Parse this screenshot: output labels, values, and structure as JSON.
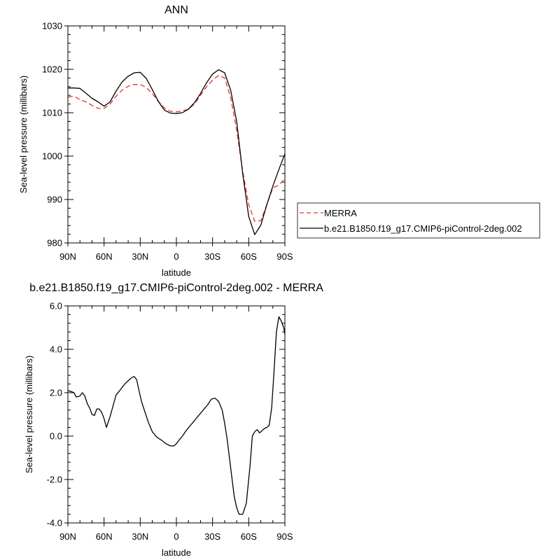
{
  "colors": {
    "model": "#000000",
    "obs": "#e83030",
    "axis": "#000000"
  },
  "chart_data": [
    {
      "type": "line",
      "title": "ANN",
      "xlabel": "latitude",
      "ylabel": "Sea-level pressure (millibars)",
      "xlim": [
        90,
        -90
      ],
      "ylim": [
        980,
        1030
      ],
      "xticks": [
        90,
        60,
        30,
        0,
        -30,
        -60,
        -90
      ],
      "xtick_labels": [
        "90N",
        "60N",
        "30N",
        "0",
        "30S",
        "60S",
        "90S"
      ],
      "yticks": [
        980,
        990,
        1000,
        1010,
        1020,
        1030
      ],
      "ytick_labels": [
        "980",
        "990",
        "1000",
        "1010",
        "1020",
        "1030"
      ],
      "legend_position": "right",
      "series": [
        {
          "name": "MERRA",
          "style": "dashed",
          "color": "#e83030",
          "x": [
            90,
            85,
            80,
            75,
            70,
            65,
            60,
            55,
            50,
            45,
            40,
            35,
            30,
            25,
            20,
            15,
            10,
            5,
            0,
            -5,
            -10,
            -15,
            -20,
            -25,
            -30,
            -35,
            -40,
            -45,
            -50,
            -55,
            -60,
            -65,
            -70,
            -75,
            -80,
            -85,
            -90
          ],
          "y": [
            1013.6,
            1013.8,
            1013.0,
            1012.5,
            1011.7,
            1011.0,
            1011.0,
            1012.0,
            1013.8,
            1015.2,
            1016.1,
            1016.5,
            1016.5,
            1015.8,
            1014.4,
            1012.6,
            1011.1,
            1010.3,
            1010.2,
            1010.4,
            1010.8,
            1012.0,
            1014.0,
            1016.0,
            1017.5,
            1018.6,
            1018.0,
            1013.5,
            1006.0,
            996.5,
            988.8,
            985.0,
            985.1,
            988.8,
            992.7,
            993.3,
            994.8
          ]
        },
        {
          "name": "b.e21.B1850.f19_g17.CMIP6-piControl-2deg.002",
          "style": "solid",
          "color": "#000000",
          "x": [
            90,
            85,
            80,
            75,
            70,
            65,
            60,
            55,
            50,
            45,
            40,
            35,
            30,
            25,
            20,
            15,
            10,
            5,
            0,
            -5,
            -10,
            -15,
            -20,
            -25,
            -30,
            -35,
            -40,
            -45,
            -50,
            -55,
            -60,
            -65,
            -70,
            -75,
            -80,
            -85,
            -90
          ],
          "y": [
            1015.7,
            1015.7,
            1015.6,
            1014.5,
            1013.3,
            1012.5,
            1011.5,
            1012.5,
            1015.0,
            1017.1,
            1018.4,
            1019.2,
            1019.3,
            1017.9,
            1015.3,
            1012.6,
            1010.6,
            1009.9,
            1009.8,
            1010.0,
            1010.8,
            1012.3,
            1014.4,
            1016.9,
            1018.9,
            1019.9,
            1019.2,
            1015.2,
            1008.0,
            996.0,
            986.1,
            981.9,
            984.1,
            988.8,
            993.1,
            996.9,
            1000.5
          ]
        }
      ]
    },
    {
      "type": "line",
      "title": "b.e21.B1850.f19_g17.CMIP6-piControl-2deg.002 - MERRA",
      "xlabel": "latitude",
      "ylabel": "Sea-level pressure (millibars)",
      "xlim": [
        90,
        -90
      ],
      "ylim": [
        -4,
        6
      ],
      "xticks": [
        90,
        60,
        30,
        0,
        -30,
        -60,
        -90
      ],
      "xtick_labels": [
        "90N",
        "60N",
        "30N",
        "0",
        "30S",
        "60S",
        "90S"
      ],
      "yticks": [
        -4,
        -2,
        0,
        2,
        4,
        6
      ],
      "ytick_labels": [
        "-4.0",
        "-2.0",
        "0.0",
        "2.0",
        "4.0",
        "6.0"
      ],
      "series": [
        {
          "style": "solid",
          "color": "#000000",
          "x": [
            90,
            87,
            85,
            83,
            80,
            78,
            76,
            74,
            72,
            70,
            68,
            66,
            64,
            62,
            60,
            58,
            55,
            52,
            50,
            47,
            45,
            42,
            40,
            37,
            35,
            33,
            31,
            29,
            26,
            23,
            20,
            17,
            15,
            12,
            10,
            7,
            5,
            2,
            0,
            -2,
            -5,
            -8,
            -11,
            -14,
            -17,
            -20,
            -23,
            -26,
            -29,
            -32,
            -35,
            -38,
            -40,
            -42,
            -44,
            -46,
            -48,
            -50,
            -52,
            -55,
            -58,
            -61,
            -63,
            -65,
            -67,
            -69,
            -71,
            -73,
            -75,
            -77,
            -79,
            -81,
            -83,
            -85,
            -87,
            -89,
            -90
          ],
          "y": [
            2.1,
            2.05,
            2.0,
            1.8,
            1.85,
            2.0,
            1.85,
            1.5,
            1.3,
            1.0,
            0.95,
            1.25,
            1.25,
            1.1,
            0.8,
            0.4,
            0.9,
            1.5,
            1.9,
            2.1,
            2.25,
            2.45,
            2.55,
            2.7,
            2.75,
            2.6,
            2.1,
            1.6,
            1.1,
            0.6,
            0.2,
            0.0,
            -0.1,
            -0.2,
            -0.3,
            -0.4,
            -0.45,
            -0.45,
            -0.35,
            -0.2,
            0.0,
            0.25,
            0.45,
            0.65,
            0.85,
            1.05,
            1.25,
            1.45,
            1.7,
            1.75,
            1.6,
            1.2,
            0.6,
            -0.1,
            -1.0,
            -1.9,
            -2.8,
            -3.3,
            -3.6,
            -3.6,
            -3.1,
            -1.4,
            0.0,
            0.2,
            0.3,
            0.15,
            0.25,
            0.35,
            0.4,
            0.5,
            1.3,
            3.0,
            4.8,
            5.5,
            5.3,
            5.0,
            4.7
          ]
        }
      ]
    }
  ]
}
